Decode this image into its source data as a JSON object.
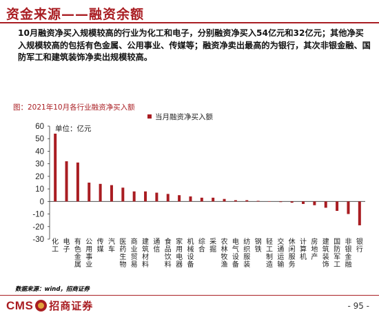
{
  "header": {
    "title": "资金来源——融资余额"
  },
  "summary": {
    "text": "10月融资净买入规模较高的行业为化工和电子，分别融资净买入54亿元和32亿元；其他净买入规模较高的包括有色金属、公用事业、传媒等；融资净卖出最高的为银行，其次非银金融、国防军工和建筑装饰净卖出规模较高。"
  },
  "figure": {
    "caption": "图：2021年10月各行业融资净买入额"
  },
  "chart_data": {
    "type": "bar",
    "unit_label": "单位：亿元",
    "categories": [
      "化工",
      "电子",
      "有色金属",
      "公用事业",
      "传媒",
      "汽车",
      "医药生物",
      "商业贸易",
      "建筑材料",
      "通信",
      "食品饮料",
      "家用电器",
      "机械设备",
      "综合",
      "采掘",
      "农林牧渔",
      "电气设备",
      "纺织服装",
      "钢铁",
      "轻工制造",
      "交通运输",
      "休闲服务",
      "计算机",
      "房地产",
      "建筑装饰",
      "国防军工",
      "非银金融",
      "银行"
    ],
    "series": [
      {
        "name": "当月融资净买入额",
        "color": "#A91D22",
        "values": [
          54,
          32,
          31,
          15,
          14,
          13,
          11,
          8,
          8,
          7,
          6,
          5,
          4,
          3,
          3,
          2,
          1,
          1,
          0.5,
          0,
          -0.5,
          -1,
          -2,
          -3,
          -5,
          -7.5,
          -10,
          -19
        ]
      }
    ],
    "ylim": [
      -30,
      60
    ],
    "yticks": [
      60,
      50,
      40,
      30,
      20,
      10,
      0,
      -10,
      -20,
      -30
    ],
    "legend_position": "top",
    "grid": false
  },
  "source": {
    "text": "数据来源：wind，招商证券"
  },
  "footer": {
    "logo_cms": "CMS",
    "logo_cn": "招商证券",
    "page": "- 95 -"
  }
}
